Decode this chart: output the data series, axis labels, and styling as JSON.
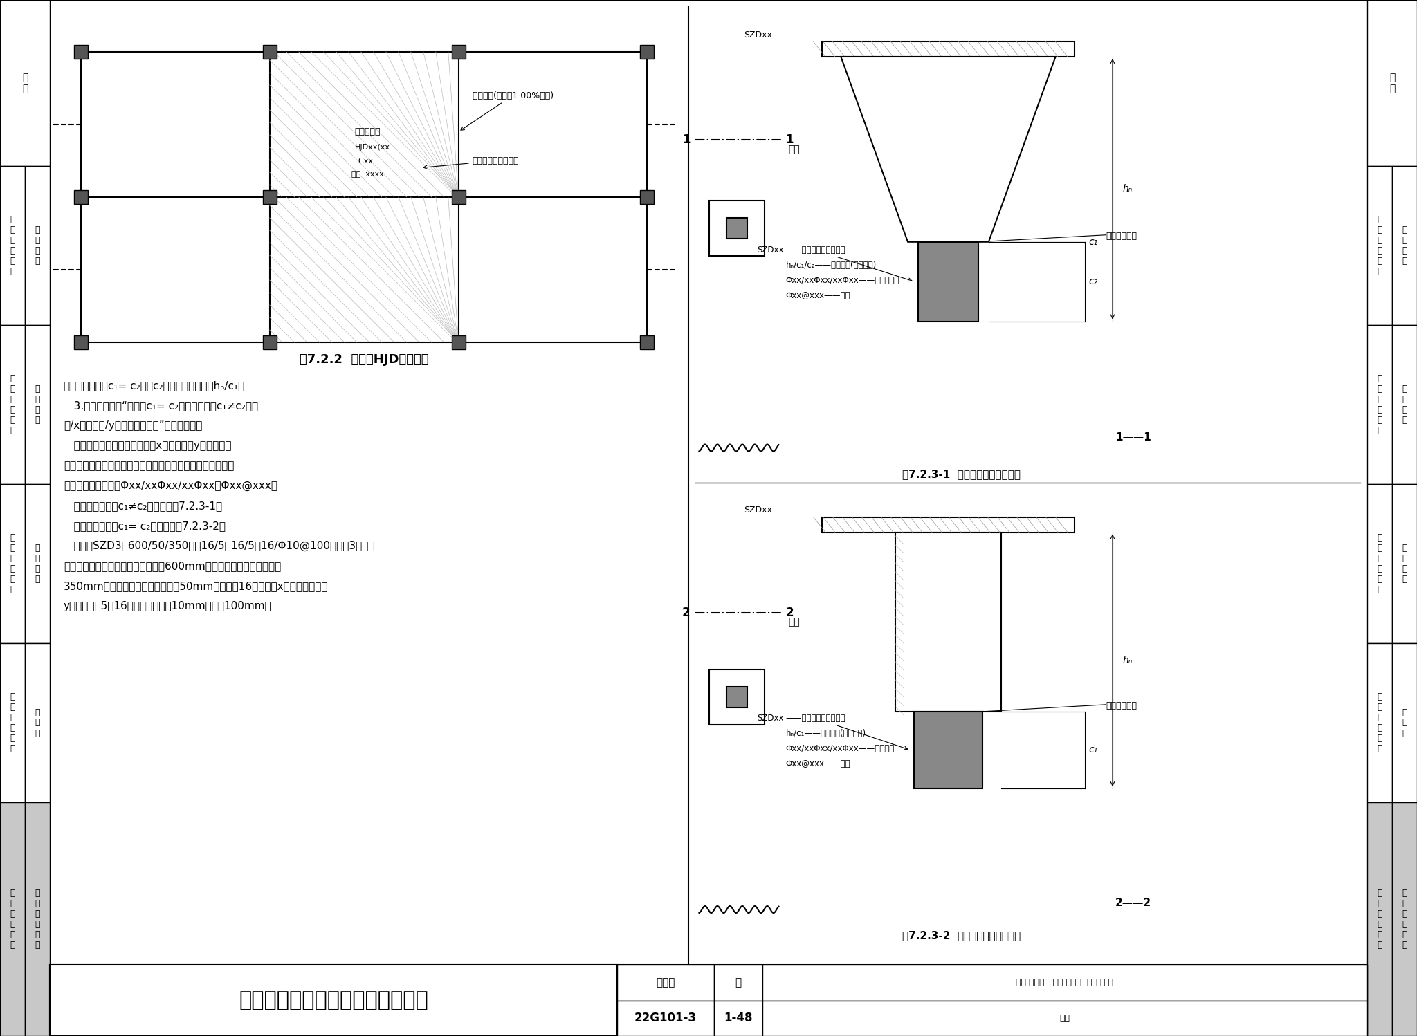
{
  "title_main": "基础相关构造平法施工图制图规则",
  "title_atlas": "图集号",
  "title_atlas_num": "22G101-3",
  "title_page": "页",
  "title_page_num": "1-48",
  "fig_722_title": "图7.2.2  后浇带HJD引注图示",
  "fig_723_1_title": "图7.2.3-1  棱台形上柱墓引注图示",
  "fig_723_2_title": "图7.2.3-2  棱柱形上柱墓引注图示",
  "text_lines": [
    "当为棱柱形柱墓c₁= c₂时，c₂不注，表达形式为hₙ/c₁。",
    "   3.注写配筋。按“竖向（c₁= c₂）或斜垂向（c₁≠c₂）角",
    "筋/x边中部筋/y边中部筋，筼筋”的顺序注写。",
    "   角筋标注出锂筋种类与直径，x边中部筋和y边中部筋标",
    "注出根数、锂筋种类与直径，筼筋标注出锂筋种类、直径及间",
    "距，其表达形式为：Φxx/xxΦxx/xxΦxx，Φxx@xxx。",
    "   棱台形上柱墓（c₁≠c₂）引注见图7.2.3-1。",
    "   棱柱形上柱墓（c₁= c₂）引注见图7.2.3-2。",
    "   《例》SZD3，600/50/350，΢16/5΢16/5΢16/Φ10@100，表示3号棱台",
    "形上柱墓；凸出基础平板顶面高度为600mm，底部每边出柱边缘宽度为",
    "350mm，顶部每边出柱边缘宽度为50mm；配置΢16的角筋，x边中部筋配置和",
    "y边中部筋为5΢16，；筼筋直径为10mm，间距100mm。"
  ],
  "bg_color": "#ffffff"
}
